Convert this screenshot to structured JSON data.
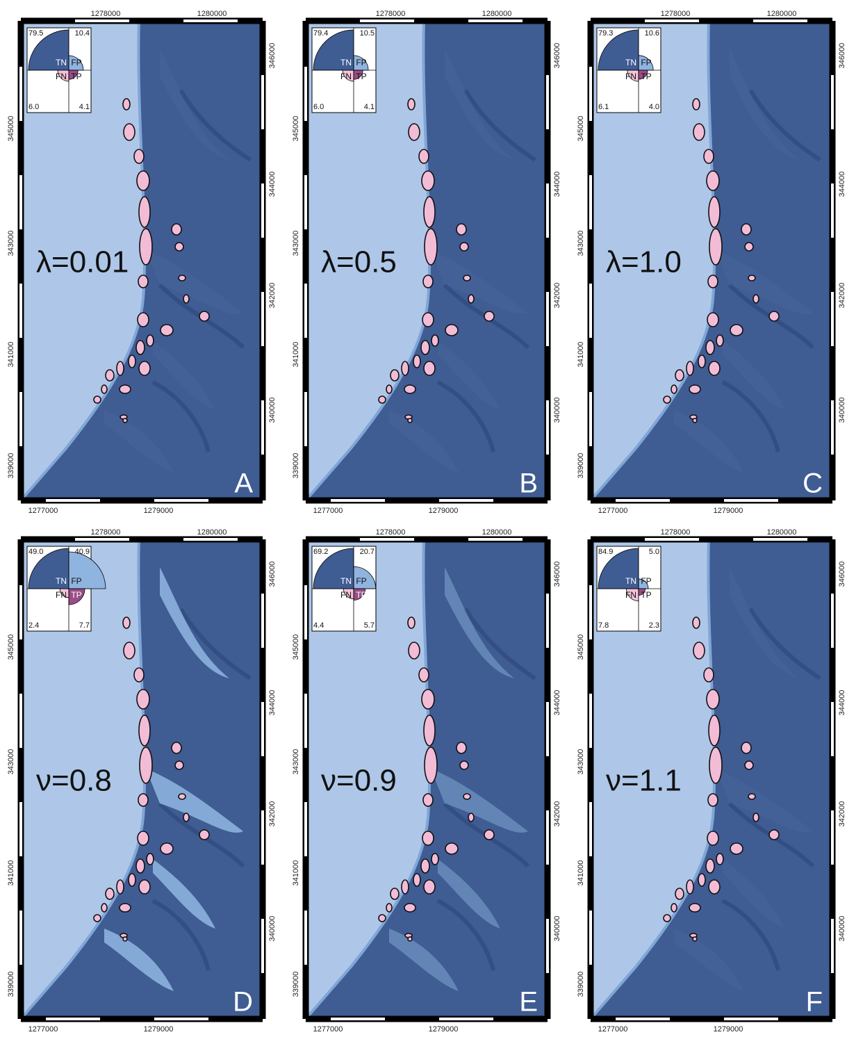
{
  "axes": {
    "top": [
      "1278000",
      "1280000"
    ],
    "bottom": [
      "1277000",
      "1279000"
    ],
    "left": [
      "345000",
      "343000",
      "341000",
      "339000"
    ],
    "right": [
      "346000",
      "344000",
      "342000",
      "340000"
    ]
  },
  "quadrant_names": {
    "TN": "TN",
    "FP": "FP",
    "FN": "FN",
    "TP": "TP"
  },
  "panels": [
    {
      "label": "A",
      "parameter": "λ=0.01",
      "TN": {
        "value": 79.5,
        "label": "79.5"
      },
      "FP": {
        "value": 10.4,
        "label": "10.4"
      },
      "FN": {
        "value": 6.0,
        "label": "6.0"
      },
      "TP": {
        "value": 4.1,
        "label": "4.1"
      }
    },
    {
      "label": "B",
      "parameter": "λ=0.5",
      "TN": {
        "value": 79.4,
        "label": "79.4"
      },
      "FP": {
        "value": 10.5,
        "label": "10.5"
      },
      "FN": {
        "value": 6.0,
        "label": "6.0"
      },
      "TP": {
        "value": 4.1,
        "label": "4.1"
      }
    },
    {
      "label": "C",
      "parameter": "λ=1.0",
      "TN": {
        "value": 79.3,
        "label": "79.3"
      },
      "FP": {
        "value": 10.6,
        "label": "10.6"
      },
      "FN": {
        "value": 6.1,
        "label": "6.1"
      },
      "TP": {
        "value": 4.0,
        "label": "4.0"
      }
    },
    {
      "label": "D",
      "parameter": "ν=0.8",
      "TN": {
        "value": 49.0,
        "label": "49.0"
      },
      "FP": {
        "value": 40.9,
        "label": "40.9"
      },
      "FN": {
        "value": 2.4,
        "label": "2.4"
      },
      "TP": {
        "value": 7.7,
        "label": "7.7"
      }
    },
    {
      "label": "E",
      "parameter": "ν=0.9",
      "TN": {
        "value": 69.2,
        "label": "69.2"
      },
      "FP": {
        "value": 20.7,
        "label": "20.7"
      },
      "FN": {
        "value": 4.4,
        "label": "4.4"
      },
      "TP": {
        "value": 5.7,
        "label": "5.7"
      }
    },
    {
      "label": "F",
      "parameter": "ν=1.1",
      "TN": {
        "value": 84.9,
        "label": "84.9"
      },
      "FP": {
        "value": 5.0,
        "label": "5.0"
      },
      "FN": {
        "value": 7.8,
        "label": "7.8"
      },
      "TP": {
        "value": 2.3,
        "label": "2.3"
      }
    }
  ]
}
